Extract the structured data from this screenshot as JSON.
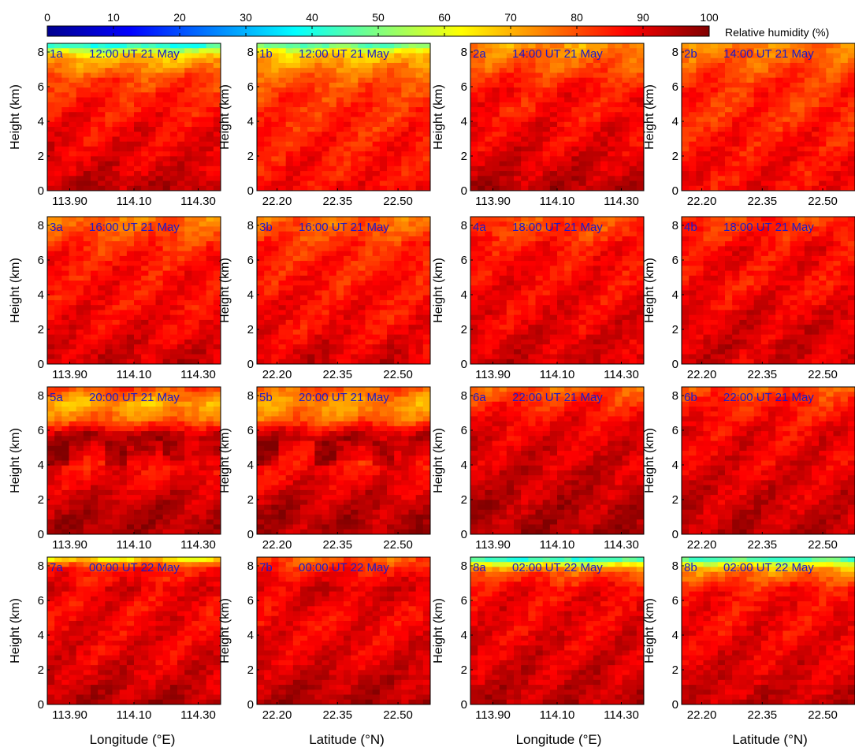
{
  "figure": {
    "colorbar": {
      "label": "Relative humidity (%)",
      "ticks": [
        "0",
        "10",
        "20",
        "30",
        "40",
        "50",
        "60",
        "70",
        "80",
        "90",
        "100"
      ],
      "range": [
        0,
        100
      ],
      "colormap": "jet"
    },
    "axis_text": {
      "ylabel": "Height (km)",
      "xlabel_lon": "Longitude (°E)",
      "xlabel_lat": "Latitude (°N)",
      "yticks": [
        "0",
        "2",
        "4",
        "6",
        "8"
      ],
      "lon_ticks": [
        "113.90",
        "114.10",
        "114.30"
      ],
      "lat_ticks": [
        "22.20",
        "22.35",
        "22.50"
      ]
    }
  },
  "chart_data": [
    {
      "type": "heatmap",
      "panel": "1a",
      "title": "12:00 UT 21 May",
      "xaxis": "longitude",
      "xlim": [
        113.83,
        114.37
      ],
      "ylim": [
        0,
        8.5
      ],
      "rh_profile": [
        95,
        92,
        90,
        89,
        88,
        86,
        84,
        80,
        70,
        55
      ],
      "dry_top": true
    },
    {
      "type": "heatmap",
      "panel": "1b",
      "title": "12:00 UT 21 May",
      "xaxis": "latitude",
      "xlim": [
        22.15,
        22.58
      ],
      "ylim": [
        0,
        8.5
      ],
      "rh_profile": [
        88,
        86,
        86,
        85,
        84,
        83,
        82,
        78,
        70,
        62
      ],
      "dry_top": true
    },
    {
      "type": "heatmap",
      "panel": "2a",
      "title": "14:00 UT 21 May",
      "xaxis": "longitude",
      "xlim": [
        113.83,
        114.37
      ],
      "ylim": [
        0,
        8.5
      ],
      "rh_profile": [
        95,
        93,
        91,
        89,
        88,
        86,
        87,
        82,
        78,
        72
      ],
      "dry_top": false
    },
    {
      "type": "heatmap",
      "panel": "2b",
      "title": "14:00 UT 21 May",
      "xaxis": "latitude",
      "xlim": [
        22.15,
        22.58
      ],
      "ylim": [
        0,
        8.5
      ],
      "rh_profile": [
        88,
        87,
        87,
        86,
        85,
        83,
        84,
        82,
        78,
        74
      ],
      "dry_top": false
    },
    {
      "type": "heatmap",
      "panel": "3a",
      "title": "16:00 UT 21 May",
      "xaxis": "longitude",
      "xlim": [
        113.83,
        114.37
      ],
      "ylim": [
        0,
        8.5
      ],
      "rh_profile": [
        93,
        91,
        89,
        88,
        87,
        87,
        86,
        84,
        80,
        76
      ],
      "dry_top": false
    },
    {
      "type": "heatmap",
      "panel": "3b",
      "title": "16:00 UT 21 May",
      "xaxis": "latitude",
      "xlim": [
        22.15,
        22.58
      ],
      "ylim": [
        0,
        8.5
      ],
      "rh_profile": [
        92,
        90,
        88,
        87,
        87,
        86,
        85,
        84,
        80,
        77
      ],
      "dry_top": false
    },
    {
      "type": "heatmap",
      "panel": "4a",
      "title": "18:00 UT 21 May",
      "xaxis": "longitude",
      "xlim": [
        113.83,
        114.37
      ],
      "ylim": [
        0,
        8.5
      ],
      "rh_profile": [
        92,
        91,
        90,
        89,
        88,
        88,
        87,
        87,
        82,
        80
      ],
      "dry_top": false
    },
    {
      "type": "heatmap",
      "panel": "4b",
      "title": "18:00 UT 21 May",
      "xaxis": "latitude",
      "xlim": [
        22.15,
        22.58
      ],
      "ylim": [
        0,
        8.5
      ],
      "rh_profile": [
        91,
        92,
        91,
        90,
        88,
        87,
        88,
        88,
        84,
        82
      ],
      "dry_top": false
    },
    {
      "type": "heatmap",
      "panel": "5a",
      "title": "20:00 UT 21 May",
      "xaxis": "longitude",
      "xlim": [
        113.83,
        114.37
      ],
      "ylim": [
        0,
        8.5
      ],
      "rh_profile": [
        95,
        95,
        93,
        90,
        87,
        94,
        96,
        78,
        70,
        82
      ],
      "dry_top": false,
      "moist_burst": true
    },
    {
      "type": "heatmap",
      "panel": "5b",
      "title": "20:00 UT 21 May",
      "xaxis": "latitude",
      "xlim": [
        22.15,
        22.58
      ],
      "ylim": [
        0,
        8.5
      ],
      "rh_profile": [
        95,
        95,
        93,
        90,
        87,
        93,
        94,
        78,
        72,
        80
      ],
      "dry_top": false,
      "moist_burst": true
    },
    {
      "type": "heatmap",
      "panel": "6a",
      "title": "22:00 UT 21 May",
      "xaxis": "longitude",
      "xlim": [
        113.83,
        114.37
      ],
      "ylim": [
        0,
        8.5
      ],
      "rh_profile": [
        96,
        95,
        94,
        93,
        92,
        91,
        90,
        88,
        84,
        78
      ],
      "dry_top": false
    },
    {
      "type": "heatmap",
      "panel": "6b",
      "title": "22:00 UT 21 May",
      "xaxis": "latitude",
      "xlim": [
        22.15,
        22.58
      ],
      "ylim": [
        0,
        8.5
      ],
      "rh_profile": [
        94,
        93,
        92,
        91,
        90,
        89,
        89,
        87,
        84,
        80
      ],
      "dry_top": false
    },
    {
      "type": "heatmap",
      "panel": "7a",
      "title": "00:00 UT 22 May",
      "xaxis": "longitude",
      "xlim": [
        113.83,
        114.37
      ],
      "ylim": [
        0,
        8.5
      ],
      "rh_profile": [
        95,
        93,
        91,
        90,
        89,
        89,
        88,
        90,
        86,
        80
      ],
      "dry_top": true
    },
    {
      "type": "heatmap",
      "panel": "7b",
      "title": "00:00 UT 22 May",
      "xaxis": "latitude",
      "xlim": [
        22.15,
        22.58
      ],
      "ylim": [
        0,
        8.5
      ],
      "rh_profile": [
        95,
        94,
        92,
        90,
        89,
        88,
        89,
        91,
        86,
        78
      ],
      "dry_top": false
    },
    {
      "type": "heatmap",
      "panel": "8a",
      "title": "02:00 UT 22 May",
      "xaxis": "longitude",
      "xlim": [
        113.83,
        114.37
      ],
      "ylim": [
        0,
        8.5
      ],
      "rh_profile": [
        94,
        93,
        92,
        91,
        90,
        89,
        89,
        88,
        80,
        55
      ],
      "dry_top": true
    },
    {
      "type": "heatmap",
      "panel": "8b",
      "title": "02:00 UT 22 May",
      "xaxis": "latitude",
      "xlim": [
        22.15,
        22.58
      ],
      "ylim": [
        0,
        8.5
      ],
      "rh_profile": [
        93,
        92,
        91,
        90,
        89,
        88,
        88,
        86,
        76,
        58
      ],
      "dry_top": true
    }
  ]
}
